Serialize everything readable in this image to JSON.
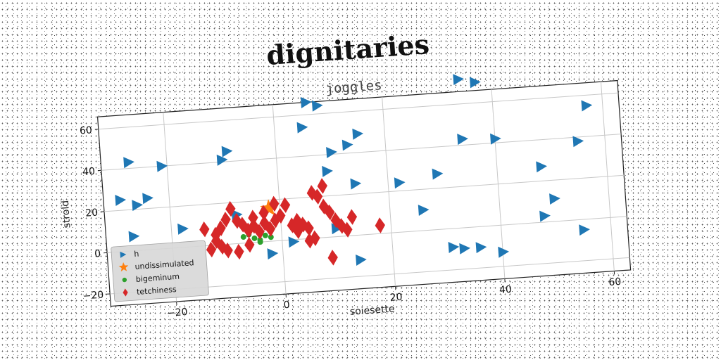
{
  "chart_data": {
    "type": "scatter",
    "title": "dignitaries",
    "subtitle": "joggles",
    "xlabel": "soiesette",
    "ylabel": "strold",
    "xlim": [
      -32,
      63
    ],
    "ylim": [
      -26,
      66
    ],
    "xticks": [
      -20,
      0,
      20,
      40,
      60
    ],
    "yticks": [
      -20,
      0,
      20,
      40,
      60
    ],
    "grid": true,
    "legend_position": "lower-left",
    "series": [
      {
        "name": "h",
        "marker": "triangle-right",
        "color": "#1f77b4",
        "points": [
          [
            -27,
            43
          ],
          [
            -21,
            40
          ],
          [
            -29,
            25
          ],
          [
            -24,
            25
          ],
          [
            -26,
            22
          ],
          [
            -27,
            7
          ],
          [
            -18,
            9
          ],
          [
            -10,
            41
          ],
          [
            -9,
            45
          ],
          [
            5,
            54
          ],
          [
            6,
            66
          ],
          [
            8,
            64
          ],
          [
            10,
            41
          ],
          [
            13,
            44
          ],
          [
            15,
            49
          ],
          [
            9,
            32
          ],
          [
            14,
            25
          ],
          [
            22,
            24
          ],
          [
            29,
            27
          ],
          [
            26,
            10
          ],
          [
            34,
            72
          ],
          [
            37,
            70
          ],
          [
            34,
            43
          ],
          [
            40,
            42
          ],
          [
            48,
            27
          ],
          [
            55,
            38
          ],
          [
            57,
            55
          ],
          [
            50,
            11
          ],
          [
            48,
            3
          ],
          [
            55,
            -5
          ],
          [
            40,
            -13
          ],
          [
            36,
            -10
          ],
          [
            33,
            -10
          ],
          [
            31,
            -9
          ],
          [
            14,
            -12
          ],
          [
            10,
            4
          ],
          [
            2,
            -1
          ],
          [
            -2,
            -6
          ],
          [
            -8,
            14
          ]
        ]
      },
      {
        "name": "undissimulated",
        "marker": "star",
        "color": "#ff7f0e",
        "points": [
          [
            -2,
            16
          ]
        ]
      },
      {
        "name": "bigeminum",
        "marker": "circle",
        "color": "#2ca02c",
        "points": [
          [
            -7,
            3
          ],
          [
            -5,
            2
          ],
          [
            -4,
            1
          ],
          [
            -6,
            4
          ],
          [
            -3,
            3
          ],
          [
            -4,
            0
          ],
          [
            -2,
            2
          ]
        ]
      },
      {
        "name": "tetchiness",
        "marker": "diamond",
        "color": "#d62728",
        "points": [
          [
            -14,
            8
          ],
          [
            -12,
            5
          ],
          [
            -11,
            8
          ],
          [
            -10,
            12
          ],
          [
            -9,
            17
          ],
          [
            -8,
            11
          ],
          [
            -7,
            9
          ],
          [
            -6,
            6
          ],
          [
            -5,
            8
          ],
          [
            -4,
            5
          ],
          [
            -3,
            9
          ],
          [
            -2,
            6
          ],
          [
            -1,
            10
          ],
          [
            0,
            12
          ],
          [
            1,
            17
          ],
          [
            2,
            7
          ],
          [
            3,
            4
          ],
          [
            4,
            7
          ],
          [
            5,
            5
          ],
          [
            6,
            0
          ],
          [
            7,
            20
          ],
          [
            8,
            15
          ],
          [
            9,
            12
          ],
          [
            10,
            8
          ],
          [
            11,
            5
          ],
          [
            12,
            3
          ],
          [
            13,
            9
          ],
          [
            -13,
            -2
          ],
          [
            -10,
            -3
          ],
          [
            -8,
            -4
          ],
          [
            -6,
            -1
          ],
          [
            -11,
            -1
          ],
          [
            5,
            -1
          ],
          [
            9,
            -10
          ],
          [
            18,
            4
          ],
          [
            -3,
            14
          ],
          [
            -1,
            18
          ],
          [
            6,
            22
          ],
          [
            8,
            25
          ],
          [
            3,
            9
          ],
          [
            -5,
            12
          ],
          [
            -12,
            2
          ]
        ]
      }
    ]
  }
}
